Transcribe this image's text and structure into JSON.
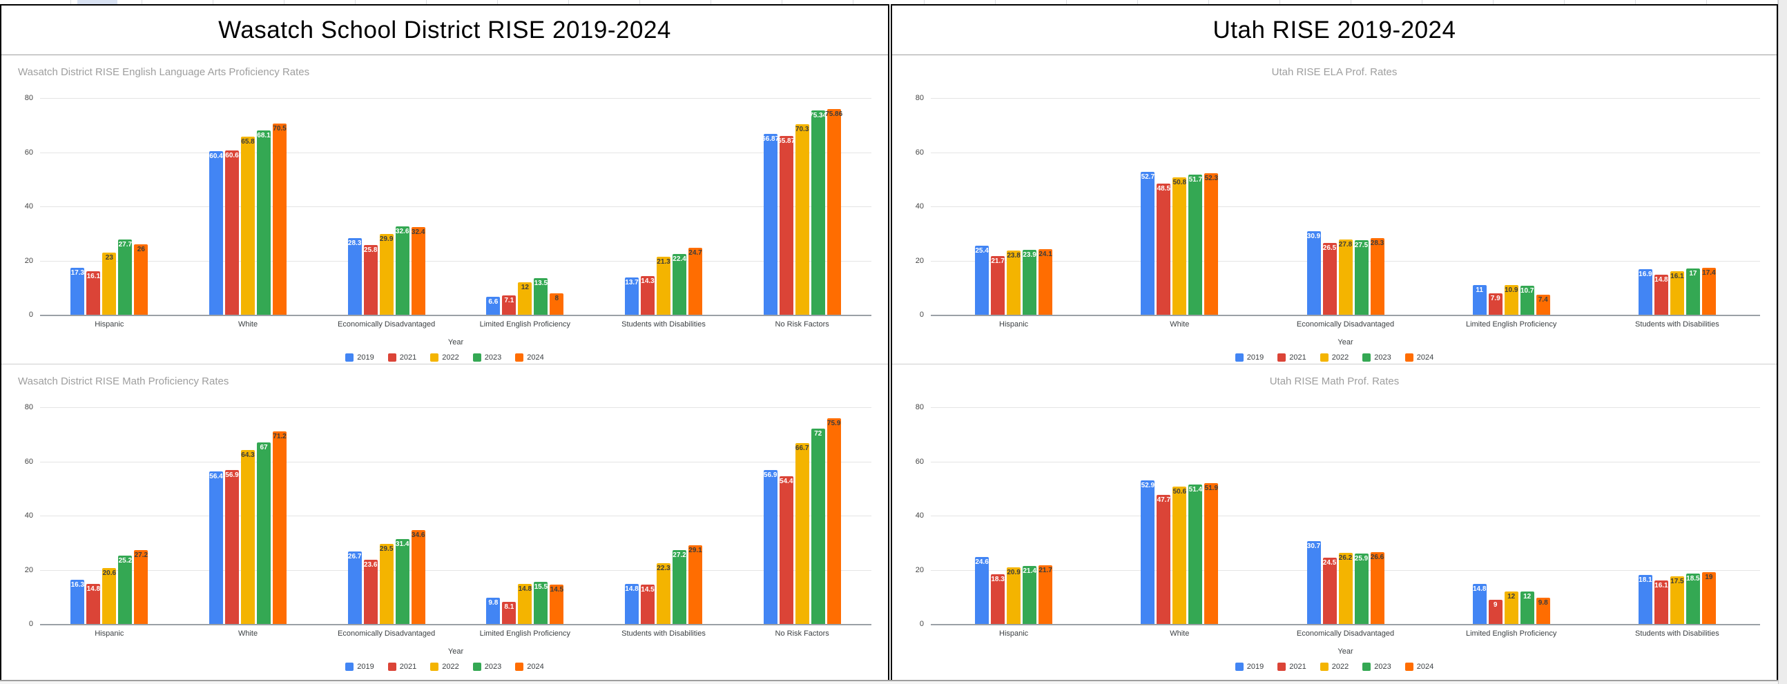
{
  "sheet": {
    "selection_cell_color": "#d9e2f3"
  },
  "panels": [
    {
      "header": "Wasatch School District RISE 2019-2024"
    },
    {
      "header": "Utah RISE 2019-2024"
    }
  ],
  "chart_data": [
    {
      "type": "bar",
      "title": "Wasatch District RISE English Language Arts Proficiency Rates",
      "title_align": "left",
      "xlabel": "Year",
      "ylim": [
        0,
        80
      ],
      "yticks": [
        0,
        20,
        40,
        60,
        80
      ],
      "grid": true,
      "legend_position": "bottom",
      "categories": [
        "Hispanic",
        "White",
        "Economically Disadvantaged",
        "Limited English Proficiency",
        "Students with Disabilities",
        "No Risk Factors"
      ],
      "series": [
        {
          "name": "2019",
          "color": "#4285F4",
          "label_color": "#ffffff",
          "values": [
            17.3,
            60.4,
            28.3,
            6.6,
            13.7,
            66.87
          ]
        },
        {
          "name": "2021",
          "color": "#DB4437",
          "label_color": "#ffffff",
          "values": [
            16.1,
            60.6,
            25.8,
            7.1,
            14.3,
            65.87
          ]
        },
        {
          "name": "2022",
          "color": "#F4B400",
          "label_color": "#3c3c3c",
          "values": [
            23,
            65.8,
            29.9,
            12,
            21.3,
            70.3
          ]
        },
        {
          "name": "2023",
          "color": "#34A853",
          "label_color": "#ffffff",
          "values": [
            27.7,
            68.1,
            32.6,
            13.5,
            22.4,
            75.34
          ]
        },
        {
          "name": "2024",
          "color": "#FF6D01",
          "label_color": "#3c3c3c",
          "values": [
            26,
            70.5,
            32.4,
            8,
            24.7,
            75.86
          ]
        }
      ]
    },
    {
      "type": "bar",
      "title": "Wasatch District RISE Math Proficiency Rates",
      "title_align": "left",
      "xlabel": "Year",
      "ylim": [
        0,
        80
      ],
      "yticks": [
        0,
        20,
        40,
        60,
        80
      ],
      "grid": true,
      "legend_position": "bottom",
      "categories": [
        "Hispanic",
        "White",
        "Economically Disadvantaged",
        "Limited English Proficiency",
        "Students with Disabilities",
        "No Risk Factors"
      ],
      "series": [
        {
          "name": "2019",
          "color": "#4285F4",
          "label_color": "#ffffff",
          "values": [
            16.3,
            56.4,
            26.7,
            9.8,
            14.8,
            56.9
          ]
        },
        {
          "name": "2021",
          "color": "#DB4437",
          "label_color": "#ffffff",
          "values": [
            14.8,
            56.9,
            23.6,
            8.1,
            14.5,
            54.4
          ]
        },
        {
          "name": "2022",
          "color": "#F4B400",
          "label_color": "#3c3c3c",
          "values": [
            20.6,
            64.3,
            29.5,
            14.8,
            22.3,
            66.7
          ]
        },
        {
          "name": "2023",
          "color": "#34A853",
          "label_color": "#ffffff",
          "values": [
            25.2,
            67,
            31.4,
            15.5,
            27.2,
            72
          ]
        },
        {
          "name": "2024",
          "color": "#FF6D01",
          "label_color": "#3c3c3c",
          "values": [
            27.2,
            71.2,
            34.6,
            14.5,
            29.1,
            75.9
          ]
        }
      ]
    },
    {
      "type": "bar",
      "title": "Utah RISE ELA Prof. Rates",
      "title_align": "center",
      "xlabel": "Year",
      "ylim": [
        0,
        80
      ],
      "yticks": [
        0,
        20,
        40,
        60,
        80
      ],
      "grid": true,
      "legend_position": "bottom",
      "categories": [
        "Hispanic",
        "White",
        "Economically Disadvantaged",
        "Limited English Proficiency",
        "Students with Disabilities"
      ],
      "series": [
        {
          "name": "2019",
          "color": "#4285F4",
          "label_color": "#ffffff",
          "values": [
            25.4,
            52.7,
            30.9,
            11,
            16.9
          ]
        },
        {
          "name": "2021",
          "color": "#DB4437",
          "label_color": "#ffffff",
          "values": [
            21.7,
            48.5,
            26.5,
            7.9,
            14.8
          ]
        },
        {
          "name": "2022",
          "color": "#F4B400",
          "label_color": "#3c3c3c",
          "values": [
            23.8,
            50.8,
            27.8,
            10.9,
            16.1
          ]
        },
        {
          "name": "2023",
          "color": "#34A853",
          "label_color": "#ffffff",
          "values": [
            23.9,
            51.7,
            27.5,
            10.7,
            17
          ]
        },
        {
          "name": "2024",
          "color": "#FF6D01",
          "label_color": "#3c3c3c",
          "values": [
            24.1,
            52.3,
            28.3,
            7.4,
            17.4
          ]
        }
      ]
    },
    {
      "type": "bar",
      "title": "Utah RISE Math Prof. Rates",
      "title_align": "center",
      "xlabel": "Year",
      "ylim": [
        0,
        80
      ],
      "yticks": [
        0,
        20,
        40,
        60,
        80
      ],
      "grid": true,
      "legend_position": "bottom",
      "categories": [
        "Hispanic",
        "White",
        "Economically Disadvantaged",
        "Limited English Proficiency",
        "Students with Disabilities"
      ],
      "series": [
        {
          "name": "2019",
          "color": "#4285F4",
          "label_color": "#ffffff",
          "values": [
            24.6,
            52.9,
            30.7,
            14.8,
            18.1
          ]
        },
        {
          "name": "2021",
          "color": "#DB4437",
          "label_color": "#ffffff",
          "values": [
            18.3,
            47.7,
            24.5,
            9,
            16.1
          ]
        },
        {
          "name": "2022",
          "color": "#F4B400",
          "label_color": "#3c3c3c",
          "values": [
            20.9,
            50.6,
            26.2,
            12,
            17.5
          ]
        },
        {
          "name": "2023",
          "color": "#34A853",
          "label_color": "#ffffff",
          "values": [
            21.4,
            51.4,
            25.9,
            12,
            18.5
          ]
        },
        {
          "name": "2024",
          "color": "#FF6D01",
          "label_color": "#3c3c3c",
          "values": [
            21.7,
            51.9,
            26.6,
            9.8,
            19
          ]
        }
      ]
    }
  ]
}
